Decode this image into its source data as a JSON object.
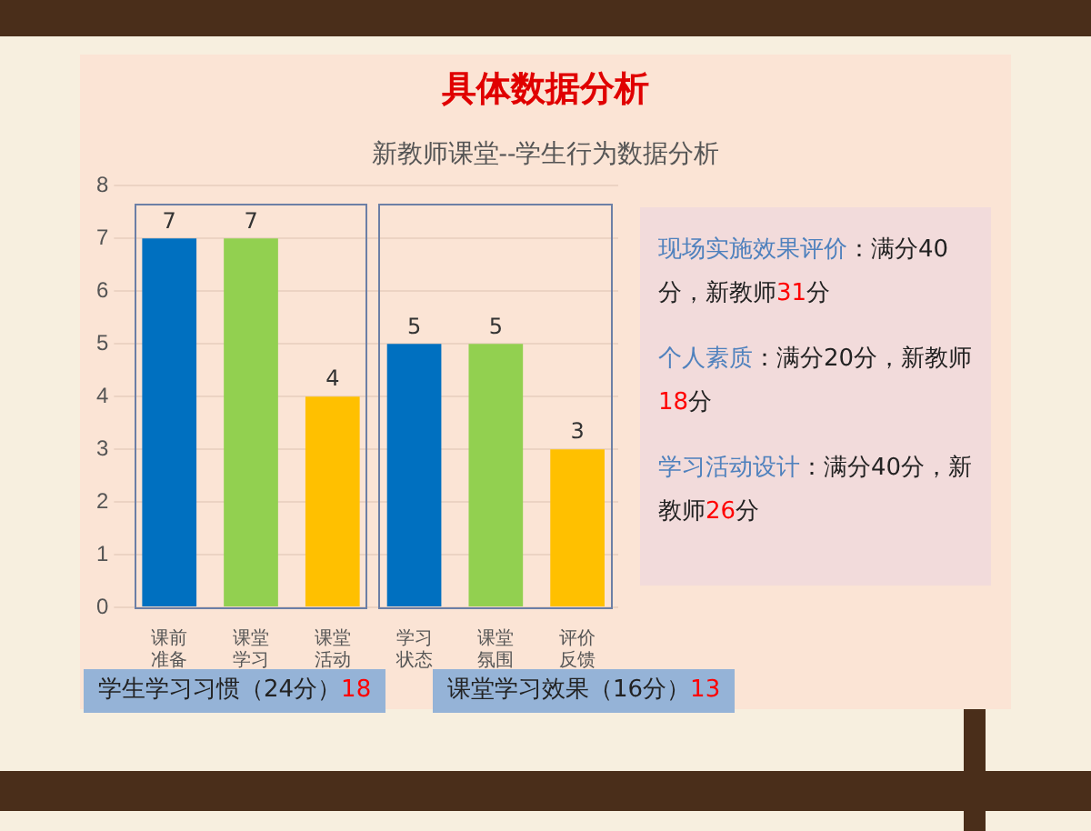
{
  "chart_data": {
    "type": "bar",
    "title": "具体数据分析",
    "subtitle": "新教师课堂--学生行为数据分析",
    "categories": [
      "课前准备",
      "课堂学习",
      "课堂活动",
      "学习状态",
      "课堂氛围",
      "评价反馈"
    ],
    "values": [
      7,
      7,
      4,
      5,
      5,
      3
    ],
    "colors": [
      "#0070c0",
      "#92d050",
      "#ffc000",
      "#0070c0",
      "#92d050",
      "#ffc000"
    ],
    "ylim": [
      0,
      8
    ],
    "yticks": [
      0,
      1,
      2,
      3,
      4,
      5,
      6,
      7,
      8
    ],
    "grid": "y",
    "data_labels": true,
    "annotations": [
      "现场实施效果评价：满分40分，新教师31分",
      "个人素质：满分20分，新教师18分",
      "学习活动设计：满分40分，新教师26分",
      "学生学习习惯（24分）18",
      "课堂学习效果（16分）13"
    ]
  }
}
